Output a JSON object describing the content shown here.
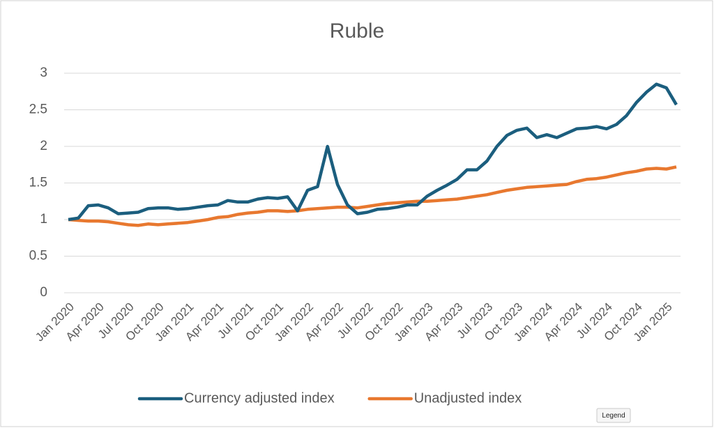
{
  "chart_data": {
    "type": "line",
    "title": "Ruble",
    "categories": [
      "Jan 2020",
      null,
      null,
      "Apr 2020",
      null,
      null,
      "Jul 2020",
      null,
      null,
      "Oct 2020",
      null,
      null,
      "Jan 2021",
      null,
      null,
      "Apr 2021",
      null,
      null,
      "Jul 2021",
      null,
      null,
      "Oct 2021",
      null,
      null,
      "Jan 2022",
      null,
      null,
      "Apr 2022",
      null,
      null,
      "Jul 2022",
      null,
      null,
      "Oct 2022",
      null,
      null,
      "Jan 2023",
      null,
      null,
      "Apr 2023",
      null,
      null,
      "Jul 2023",
      null,
      null,
      "Oct 2023",
      null,
      null,
      "Jan 2024",
      null,
      null,
      "Apr 2024",
      null,
      null,
      "Jul 2024",
      null,
      null,
      "Oct 2024",
      null,
      null,
      "Jan 2025",
      null
    ],
    "series": [
      {
        "name": "Currency adjusted index",
        "color": "#1b5e7e",
        "values": [
          1.0,
          1.02,
          1.19,
          1.2,
          1.16,
          1.08,
          1.09,
          1.1,
          1.15,
          1.16,
          1.16,
          1.14,
          1.15,
          1.17,
          1.19,
          1.2,
          1.26,
          1.24,
          1.24,
          1.28,
          1.3,
          1.29,
          1.31,
          1.12,
          1.4,
          1.45,
          2.0,
          1.48,
          1.2,
          1.08,
          1.1,
          1.14,
          1.15,
          1.17,
          1.2,
          1.2,
          1.32,
          1.4,
          1.47,
          1.55,
          1.68,
          1.68,
          1.8,
          2.0,
          2.15,
          2.22,
          2.25,
          2.12,
          2.16,
          2.12,
          2.18,
          2.24,
          2.25,
          2.27,
          2.24,
          2.3,
          2.42,
          2.6,
          2.74,
          2.85,
          2.8,
          2.57
        ]
      },
      {
        "name": "Unadjusted index",
        "color": "#e8782f",
        "values": [
          1.0,
          0.99,
          0.98,
          0.98,
          0.97,
          0.95,
          0.93,
          0.92,
          0.94,
          0.93,
          0.94,
          0.95,
          0.96,
          0.98,
          1.0,
          1.03,
          1.04,
          1.07,
          1.09,
          1.1,
          1.12,
          1.12,
          1.11,
          1.12,
          1.14,
          1.15,
          1.16,
          1.17,
          1.17,
          1.16,
          1.18,
          1.2,
          1.22,
          1.23,
          1.24,
          1.25,
          1.25,
          1.26,
          1.27,
          1.28,
          1.3,
          1.32,
          1.34,
          1.37,
          1.4,
          1.42,
          1.44,
          1.45,
          1.46,
          1.47,
          1.48,
          1.52,
          1.55,
          1.56,
          1.58,
          1.61,
          1.64,
          1.66,
          1.69,
          1.7,
          1.69,
          1.72
        ]
      }
    ],
    "ylim": [
      0,
      3
    ],
    "yticks": [
      0,
      0.5,
      1,
      1.5,
      2,
      2.5,
      3
    ],
    "grid": true,
    "legend": "bottom",
    "tooltip": "Legend"
  }
}
